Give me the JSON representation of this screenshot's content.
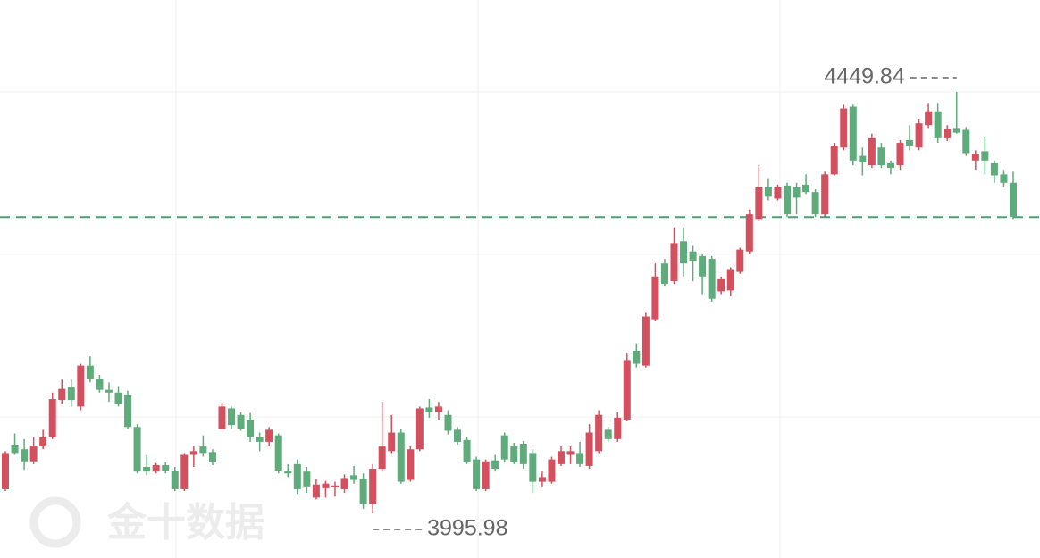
{
  "watermark": "金十数据",
  "chart_data": {
    "type": "candlestick",
    "up_color": "#d5505e",
    "down_color": "#5fab7b",
    "ylim": [
      3947.9,
      4548.9
    ],
    "open": [
      4022,
      4070,
      4065,
      4052,
      4068,
      4078,
      4118,
      4132,
      4111,
      4155,
      4141,
      4129,
      4126,
      4124,
      4089,
      4046,
      4041,
      4048,
      4042,
      4022,
      4059,
      4068,
      4062,
      4087,
      4109,
      4102,
      4097,
      4078,
      4073,
      4080,
      4042,
      4049,
      4041,
      4013,
      4023,
      4024,
      4022,
      4037,
      4033,
      4006,
      4044,
      4063,
      4083,
      4032,
      4065,
      4110,
      4105,
      4102,
      4086,
      4075,
      4054,
      4022,
      4053,
      4080,
      4068,
      4071,
      4061,
      4030,
      4030,
      4049,
      4059,
      4061,
      4047,
      4063,
      4086,
      4076,
      4097,
      4171,
      4155,
      4205,
      4265,
      4246,
      4289,
      4278,
      4273,
      4270,
      4235,
      4236,
      4256,
      4278,
      4313,
      4347,
      4335,
      4349,
      4347,
      4350,
      4342,
      4318,
      4361,
      4390,
      4434,
      4381,
      4371,
      4390,
      4373,
      4371,
      4398,
      4390,
      4414,
      4429,
      4400,
      4411,
      4409,
      4376,
      4386,
      4373,
      4361,
      4352
    ],
    "high": [
      4063,
      4082,
      4076,
      4078,
      4086,
      4126,
      4140,
      4140,
      4157,
      4165,
      4145,
      4137,
      4133,
      4128,
      4092,
      4059,
      4050,
      4051,
      4046,
      4061,
      4068,
      4080,
      4065,
      4115,
      4111,
      4105,
      4104,
      4083,
      4089,
      4082,
      4049,
      4054,
      4046,
      4033,
      4031,
      4030,
      4038,
      4047,
      4039,
      4049,
      4116,
      4102,
      4087,
      4068,
      4111,
      4119,
      4116,
      4107,
      4089,
      4078,
      4057,
      4054,
      4059,
      4083,
      4072,
      4074,
      4065,
      4041,
      4057,
      4068,
      4068,
      4073,
      4092,
      4107,
      4089,
      4105,
      4169,
      4179,
      4212,
      4265,
      4270,
      4304,
      4304,
      4285,
      4275,
      4273,
      4251,
      4261,
      4282,
      4323,
      4371,
      4357,
      4350,
      4352,
      4352,
      4361,
      4345,
      4364,
      4395,
      4436,
      4436,
      4390,
      4405,
      4395,
      4376,
      4398,
      4414,
      4421,
      4438,
      4438,
      4414,
      4449.84,
      4412,
      4387,
      4402,
      4376,
      4366,
      4364
    ],
    "low": [
      4020,
      4059,
      4043,
      4049,
      4065,
      4076,
      4114,
      4111,
      4107,
      4137,
      4126,
      4116,
      4111,
      4087,
      4039,
      4037,
      4039,
      4039,
      4020,
      4020,
      4046,
      4057,
      4048,
      4086,
      4087,
      4085,
      4073,
      4063,
      4068,
      4039,
      4035,
      4017,
      4018,
      4011,
      4013,
      4014,
      4018,
      4028,
      4001,
      3995.98,
      4041,
      4061,
      4028,
      4030,
      4063,
      4099,
      4097,
      4081,
      4070,
      4049,
      4020,
      4020,
      4041,
      4051,
      4049,
      4044,
      4018,
      4025,
      4028,
      4047,
      4049,
      4046,
      4044,
      4061,
      4073,
      4073,
      4095,
      4153,
      4153,
      4203,
      4241,
      4243,
      4251,
      4246,
      4232,
      4224,
      4232,
      4230,
      4254,
      4275,
      4311,
      4333,
      4333,
      4315,
      4318,
      4340,
      4315,
      4315,
      4360,
      4387,
      4371,
      4360,
      4368,
      4368,
      4361,
      4366,
      4387,
      4387,
      4411,
      4395,
      4397,
      4405,
      4381,
      4366,
      4361,
      4352,
      4347,
      4313
    ],
    "close": [
      4061,
      4061,
      4052,
      4068,
      4078,
      4119,
      4130,
      4118,
      4155,
      4141,
      4129,
      4126,
      4114,
      4089,
      4041,
      4041,
      4048,
      4042,
      4022,
      4059,
      4063,
      4061,
      4051,
      4111,
      4091,
      4087,
      4078,
      4073,
      4086,
      4042,
      4039,
      4022,
      4025,
      4027,
      4028,
      4026,
      4034,
      4032,
      4006,
      4044,
      4068,
      4083,
      4030,
      4065,
      4109,
      4105,
      4111,
      4085,
      4073,
      4051,
      4022,
      4052,
      4044,
      4054,
      4051,
      4049,
      4030,
      4035,
      4054,
      4063,
      4063,
      4049,
      4083,
      4102,
      4076,
      4099,
      4161,
      4157,
      4208,
      4251,
      4243,
      4287,
      4265,
      4268,
      4251,
      4227,
      4249,
      4259,
      4280,
      4318,
      4347,
      4337,
      4347,
      4318,
      4336,
      4342,
      4318,
      4361,
      4392,
      4432,
      4376,
      4374,
      4400,
      4371,
      4368,
      4395,
      4392,
      4416,
      4429,
      4400,
      4410,
      4406,
      4384,
      4383,
      4376,
      4360,
      4352,
      4315
    ]
  }
}
